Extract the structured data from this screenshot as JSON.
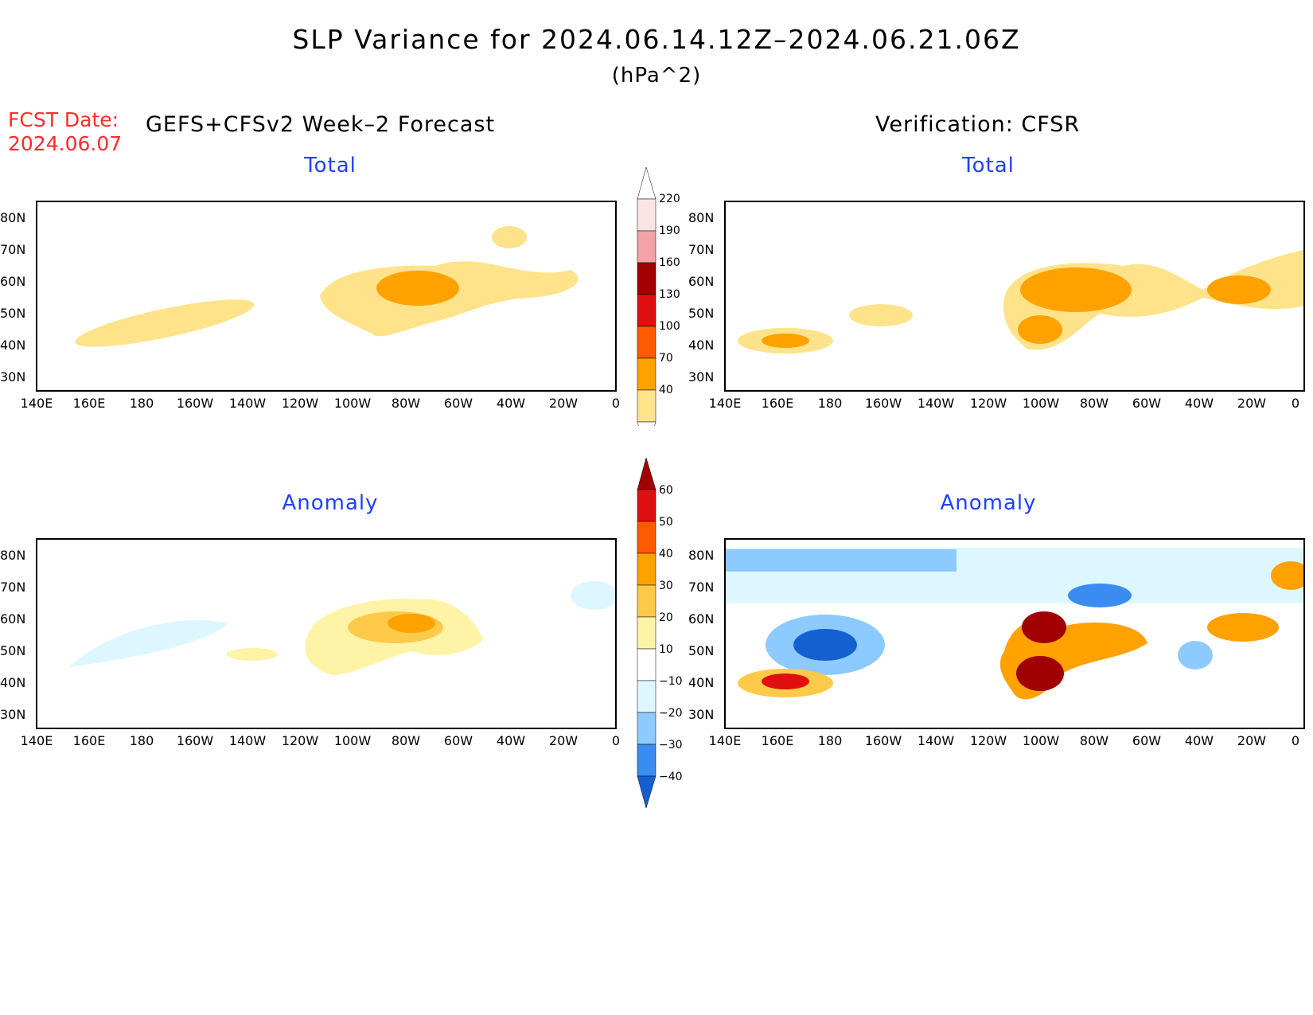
{
  "title": "SLP Variance for 2024.06.14.12Z–2024.06.21.06Z",
  "units": "(hPa^2)",
  "fcst_date_label": "FCST Date:",
  "fcst_date_value": "2024.06.07",
  "left_header": "GEFS+CFSv2 Week–2 Forecast",
  "right_header": "Verification: CFSR",
  "panels": {
    "fcst_total": {
      "title": "Total"
    },
    "verif_total": {
      "title": "Total"
    },
    "fcst_anom": {
      "title": "Anomaly"
    },
    "verif_anom": {
      "title": "Anomaly"
    }
  },
  "lat_labels": [
    "80N",
    "70N",
    "60N",
    "50N",
    "40N",
    "30N"
  ],
  "lon_labels": [
    "140E",
    "160E",
    "180",
    "160W",
    "140W",
    "120W",
    "100W",
    "80W",
    "60W",
    "40W",
    "20W",
    "0"
  ],
  "colorbar_total": {
    "levels": [
      "220",
      "190",
      "160",
      "130",
      "100",
      "70",
      "40"
    ],
    "colors": [
      "#fde4e4",
      "#f3a3a3",
      "#a00000",
      "#e01010",
      "#ff5a00",
      "#ffa200",
      "#ffe38a"
    ]
  },
  "colorbar_anom": {
    "levels": [
      "60",
      "50",
      "40",
      "30",
      "20",
      "10",
      "−10",
      "−20",
      "−30",
      "−40"
    ],
    "colors": [
      "#a00000",
      "#e01010",
      "#ff5a00",
      "#ffa200",
      "#ffc94a",
      "#fff3a6",
      "#ffffff",
      "#dcf7ff",
      "#8ccaff",
      "#3a8cf0",
      "#1560d0"
    ]
  }
}
